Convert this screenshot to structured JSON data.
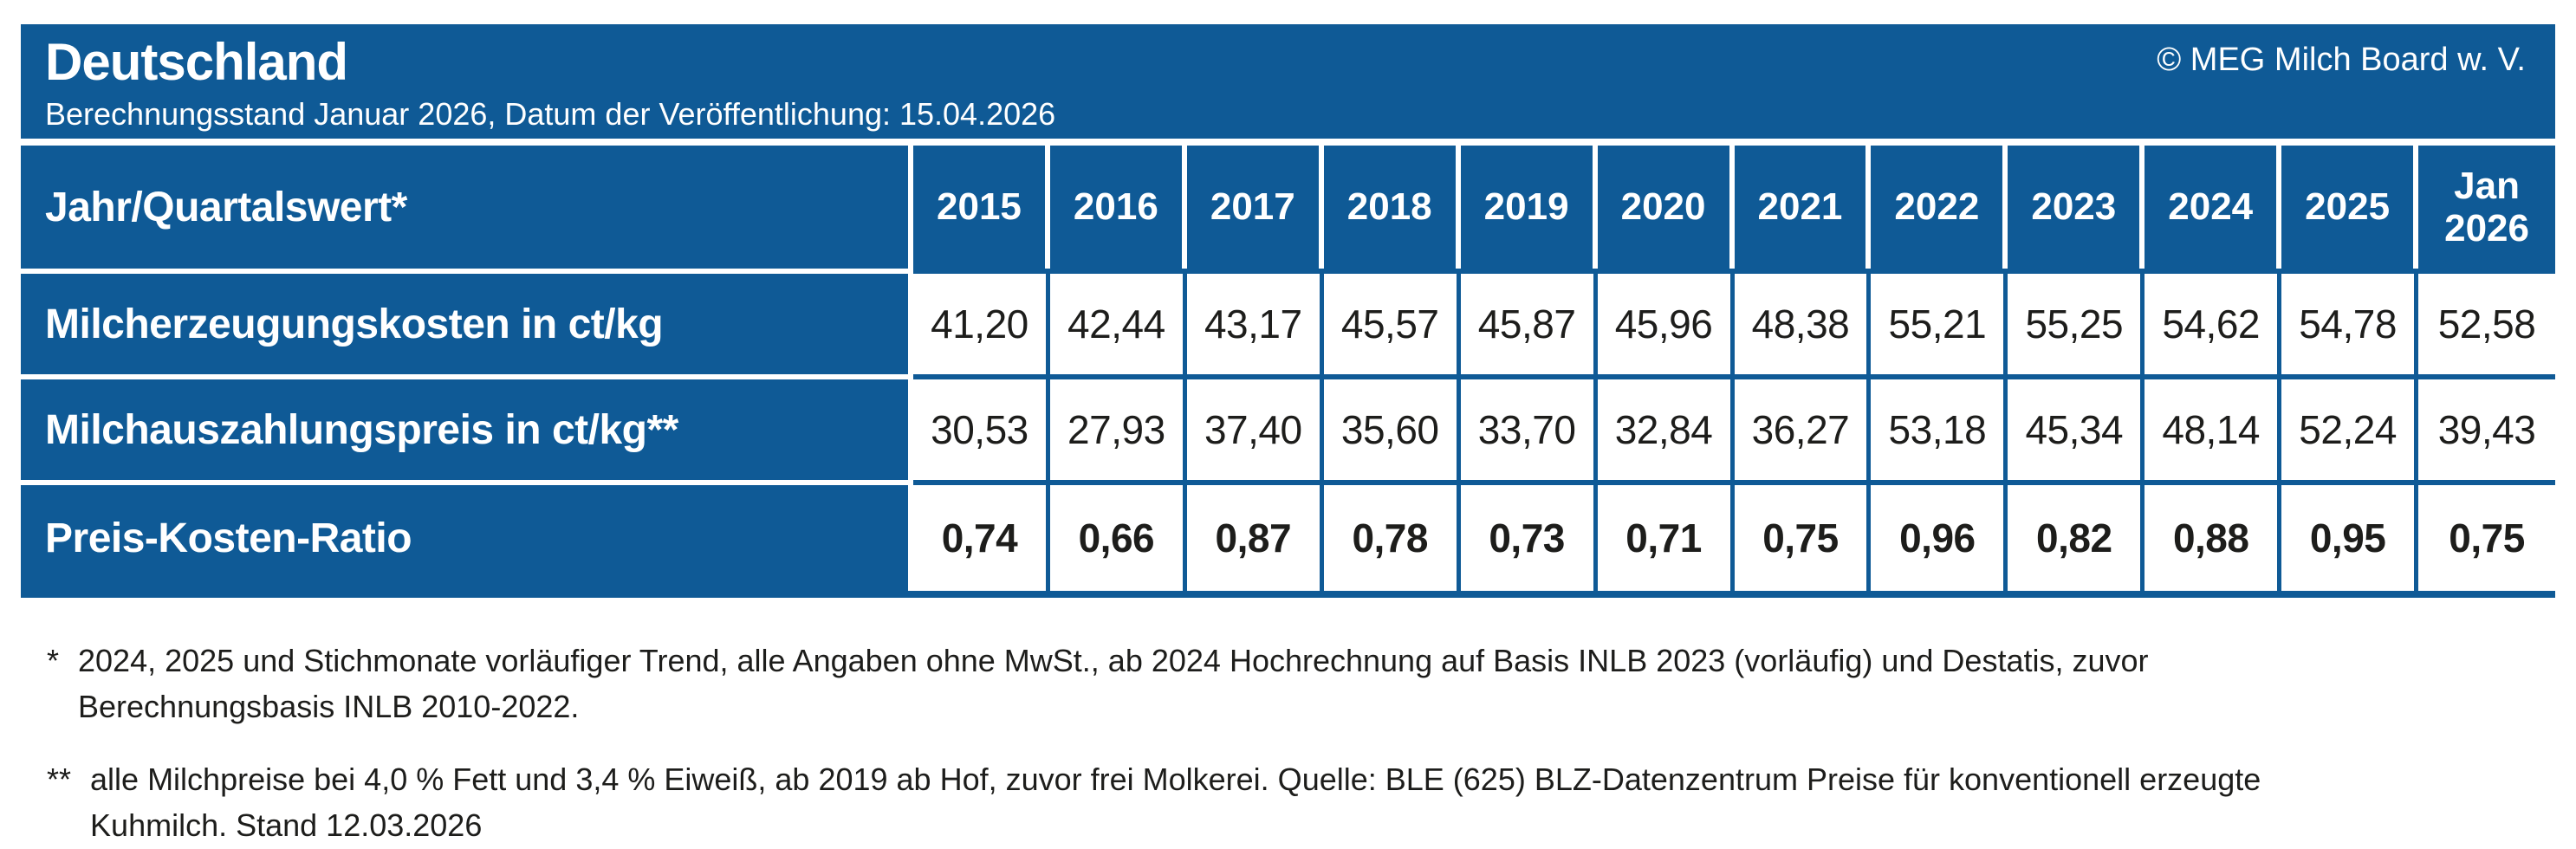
{
  "header": {
    "title": "Deutschland",
    "subtitle": "Berechnungsstand Januar 2026, Datum der Veröffentlichung: 15.04.2026",
    "copyright": "© MEG Milch Board w. V."
  },
  "table": {
    "corner_label": "Jahr/Quartalswert*",
    "columns": [
      "2015",
      "2016",
      "2017",
      "2018",
      "2019",
      "2020",
      "2021",
      "2022",
      "2023",
      "2024",
      "2025",
      "Jan 2026"
    ],
    "rows": [
      {
        "label": "Milcherzeugungskosten in ct/kg",
        "values": [
          "41,20",
          "42,44",
          "43,17",
          "45,57",
          "45,87",
          "45,96",
          "48,38",
          "55,21",
          "55,25",
          "54,62",
          "54,78",
          "52,58"
        ]
      },
      {
        "label": "Milchauszahlungspreis in ct/kg**",
        "values": [
          "30,53",
          "27,93",
          "37,40",
          "35,60",
          "33,70",
          "32,84",
          "36,27",
          "53,18",
          "45,34",
          "48,14",
          "52,24",
          "39,43"
        ]
      },
      {
        "label": "Preis-Kosten-Ratio",
        "values": [
          "0,74",
          "0,66",
          "0,87",
          "0,78",
          "0,73",
          "0,71",
          "0,75",
          "0,96",
          "0,82",
          "0,88",
          "0,95",
          "0,75"
        ]
      }
    ]
  },
  "footnotes": [
    {
      "marker": "*",
      "text": "2024, 2025 und Stichmonate vorläufiger Trend, alle Angaben ohne MwSt., ab 2024 Hochrechnung auf Basis INLB 2023 (vorläufig) und Destatis, zuvor Berechnungsbasis INLB 2010-2022."
    },
    {
      "marker": "**",
      "text": "alle Milchpreise bei 4,0 % Fett und 3,4 % Eiweiß, ab 2019 ab Hof, zuvor frei Molkerei. Quelle: BLE (625) BLZ-Datenzentrum Preise für konventionell erzeugte Kuhmilch. Stand 12.03.2026"
    }
  ],
  "colors": {
    "primary_blue": "#0f5a96",
    "text_dark": "#1d1d1b",
    "header_text": "#ffffff"
  },
  "chart_data": {
    "type": "table",
    "title": "Deutschland — Milcherzeugungskosten, Milchauszahlungspreis und Preis-Kosten-Ratio",
    "subtitle": "Berechnungsstand Januar 2026, Datum der Veröffentlichung: 15.04.2026",
    "categories": [
      "2015",
      "2016",
      "2017",
      "2018",
      "2019",
      "2020",
      "2021",
      "2022",
      "2023",
      "2024",
      "2025",
      "Jan 2026"
    ],
    "series": [
      {
        "name": "Milcherzeugungskosten in ct/kg",
        "values": [
          41.2,
          42.44,
          43.17,
          45.57,
          45.87,
          45.96,
          48.38,
          55.21,
          55.25,
          54.62,
          54.78,
          52.58
        ]
      },
      {
        "name": "Milchauszahlungspreis in ct/kg",
        "values": [
          30.53,
          27.93,
          37.4,
          35.6,
          33.7,
          32.84,
          36.27,
          53.18,
          45.34,
          48.14,
          52.24,
          39.43
        ]
      },
      {
        "name": "Preis-Kosten-Ratio",
        "values": [
          0.74,
          0.66,
          0.87,
          0.78,
          0.73,
          0.71,
          0.75,
          0.96,
          0.82,
          0.88,
          0.95,
          0.75
        ]
      }
    ]
  }
}
